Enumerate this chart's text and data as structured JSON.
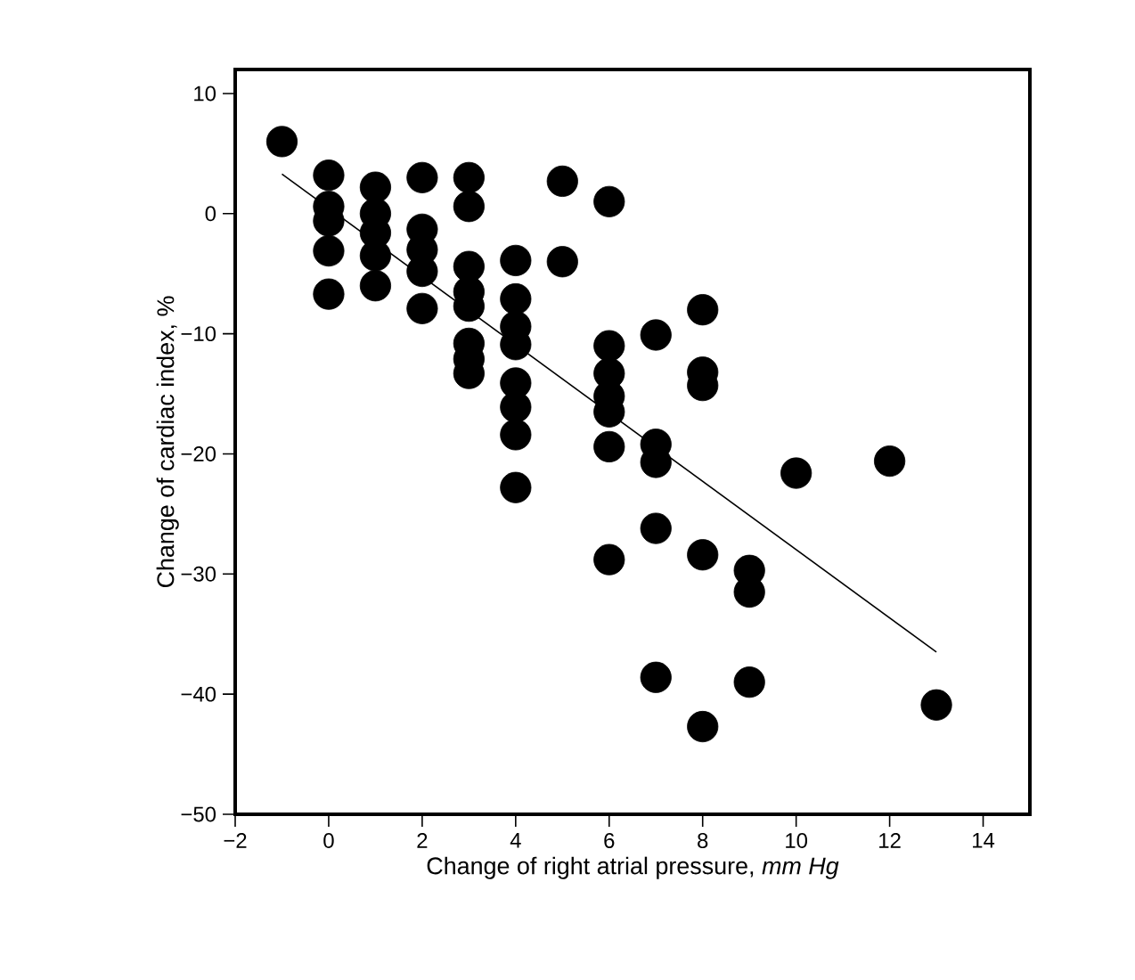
{
  "chart_data": {
    "type": "scatter",
    "xlabel": "Change of right atrial pressure, *mm Hg*",
    "ylabel": "Change of cardiac index, %",
    "xlim": [
      -2,
      15
    ],
    "ylim": [
      -50,
      12
    ],
    "xticks": [
      {
        "value": -2,
        "label": "−2"
      },
      0,
      2,
      4,
      6,
      8,
      10,
      12,
      14
    ],
    "yticks": [
      {
        "value": -50,
        "label": "−50"
      },
      {
        "value": -40,
        "label": "−40"
      },
      {
        "value": -30,
        "label": "−30"
      },
      {
        "value": -20,
        "label": "−20"
      },
      {
        "value": -10,
        "label": "−10"
      },
      0,
      10
    ],
    "grid": false,
    "series": [
      {
        "color": "#000000",
        "marker": "circle",
        "x": [
          -1,
          0,
          0,
          0,
          0,
          0,
          1,
          1,
          1,
          1,
          1,
          2,
          2,
          2,
          2,
          2,
          3,
          3,
          3,
          3,
          3,
          3,
          3,
          3,
          4,
          4,
          4,
          4,
          4,
          4,
          4,
          4,
          5,
          5,
          6,
          6,
          6,
          6,
          6,
          6,
          6,
          7,
          7,
          7,
          7,
          7,
          8,
          8,
          8,
          8,
          8,
          9,
          9,
          9,
          10,
          12,
          13
        ],
        "values": [
          6.0,
          3.2,
          0.6,
          -0.6,
          -3.1,
          -6.7,
          2.2,
          0,
          -1.6,
          -3.5,
          -6.0,
          3.0,
          -1.3,
          -3.0,
          -4.8,
          -7.9,
          3.0,
          0.6,
          -4.4,
          -6.5,
          -7.7,
          -10.8,
          -12.1,
          -13.3,
          -3.9,
          -7.1,
          -9.4,
          -10.9,
          -14.1,
          -16.1,
          -18.4,
          -22.8,
          2.7,
          -4.0,
          1.0,
          -11.0,
          -13.3,
          -15.2,
          -16.5,
          -19.4,
          -28.8,
          -10.1,
          -19.2,
          -20.7,
          -26.2,
          -38.6,
          -8.0,
          -13.2,
          -14.3,
          -28.4,
          -42.7,
          -29.7,
          -31.5,
          -39.0,
          -21.6,
          -20.6,
          -40.9
        ]
      },
      {
        "type": "line",
        "color": "#000000",
        "marker": "none",
        "x": [
          -1,
          13
        ],
        "values": [
          3.3,
          -36.5
        ]
      }
    ]
  }
}
